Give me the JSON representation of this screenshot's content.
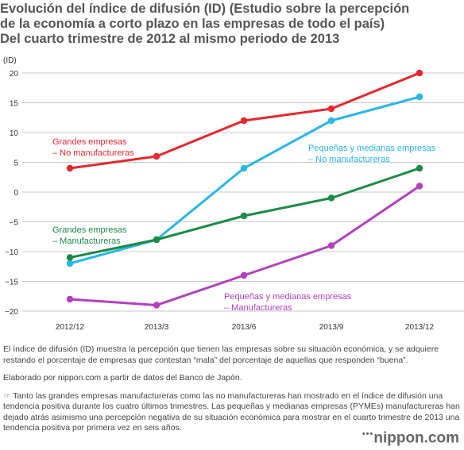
{
  "title_lines": [
    "Evolución del índice de difusión (ID) (Estudio sobre la percepción",
    "de la economía a corto plazo en las empresas de todo el país)",
    "Del cuarto trimestre de 2012 al mismo periodo de 2013"
  ],
  "chart_data": {
    "type": "line",
    "ylabel": "(ID)",
    "ylim": [
      -20,
      20
    ],
    "yticks": [
      {
        "value": 20,
        "label": "20"
      },
      {
        "value": 15,
        "label": "15"
      },
      {
        "value": 10,
        "label": "10"
      },
      {
        "value": 5,
        "label": "5"
      },
      {
        "value": 0,
        "label": "0"
      },
      {
        "value": -5,
        "label": "−5"
      },
      {
        "value": -10,
        "label": "−10"
      },
      {
        "value": -15,
        "label": "−15"
      },
      {
        "value": -20,
        "label": "−20"
      }
    ],
    "categories": [
      "2012/12",
      "2013/3",
      "2013/6",
      "2013/9",
      "2013/12"
    ],
    "grid": "horizontal",
    "series": [
      {
        "name_lines": [
          "Grandes empresas",
          "– No manufactureras"
        ],
        "color": "#e8262b",
        "values": [
          4,
          6,
          12,
          14,
          20
        ]
      },
      {
        "name_lines": [
          "Pequeñas y medianas empresas",
          "– No manufactureras"
        ],
        "color": "#29b6e8",
        "values": [
          -12,
          -8,
          4,
          12,
          16
        ]
      },
      {
        "name_lines": [
          "Grandes empresas",
          "– Manufactureras"
        ],
        "color": "#1a8b45",
        "values": [
          -11,
          -8,
          -4,
          -1,
          4
        ]
      },
      {
        "name_lines": [
          "Pequeñas y medianas empresas",
          "– Manufactureras"
        ],
        "color": "#b33fbf",
        "values": [
          -18,
          -19,
          -14,
          -9,
          1
        ]
      }
    ]
  },
  "notes": {
    "definition": "El índice de difusión (ID) muestra la percepción que tienen las empresas sobre su situación económica, y se adquiere restando el porcentaje de empresas que contestan “mala” del porcentaje de aquellas que responden “buena”.",
    "source": "Elaborado por nippon.com a partir de datos del Banco de Japón.",
    "pointer_icon": "☞",
    "commentary": "Tanto las grandes empresas manufactureras como las no manufactureras han mostrado en el índice de difusión una tendencia positiva durante los cuatro últimos trimestres. Las pequeñas y medianas empresas (PYMEs) manufactureras han dejado atrás asimismo una percepción negativa de su situación económica para mostrar en el cuarto trimestre de 2013 una tendencia positiva por primera vez en seis años."
  },
  "brand": {
    "dots": "•••",
    "name": "nippon.com"
  }
}
